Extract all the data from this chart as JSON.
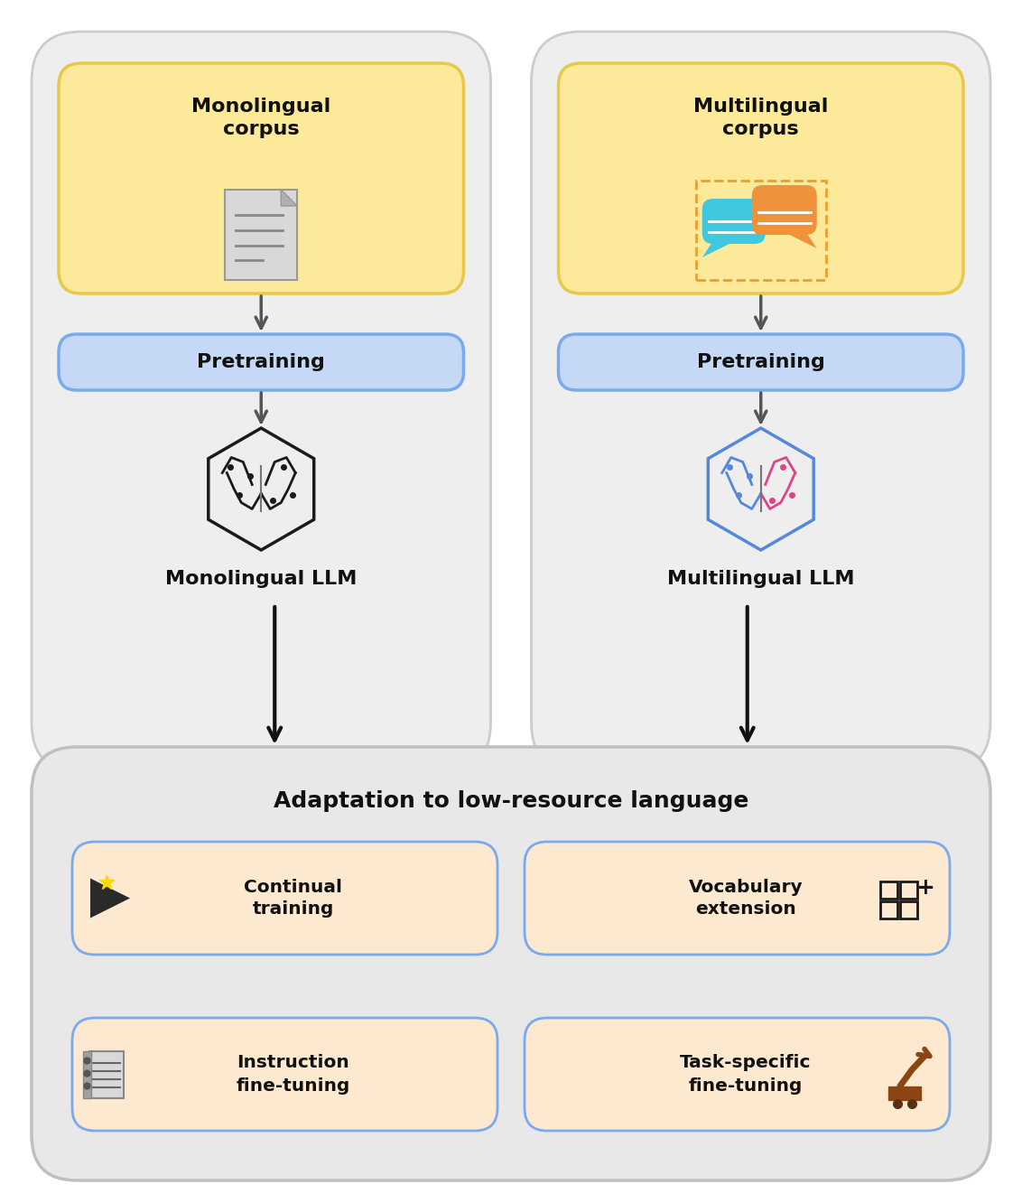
{
  "bg_color": "#ffffff",
  "outer_bg": "#f0f0f0",
  "top_panel_bg": "#e8e8e8",
  "corpus_box_bg": "#fde99a",
  "corpus_box_border": "#e8c84a",
  "pretraining_box_bg": "#c5d9f7",
  "pretraining_box_border": "#7aaaee",
  "adaptation_box_bg": "#e8e8e8",
  "adaptation_box_border": "#b0b0b0",
  "sub_box_bg": "#fde8d0",
  "sub_box_border": "#7aaaee",
  "arrow_color": "#444444",
  "text_color": "#111111",
  "title": "Adaptation to low-resource language",
  "mono_corpus_label": "Monolingual\ncorpus",
  "multi_corpus_label": "Multilingual\ncorpus",
  "pretraining_label": "Pretraining",
  "mono_llm_label": "Monolingual LLM",
  "multi_llm_label": "Multilingual LLM",
  "adaptation_items": [
    "Continual\ntraining",
    "Vocabulary\nextension",
    "Instruction\nfine-tuning",
    "Task-specific\nfine-tuning"
  ]
}
